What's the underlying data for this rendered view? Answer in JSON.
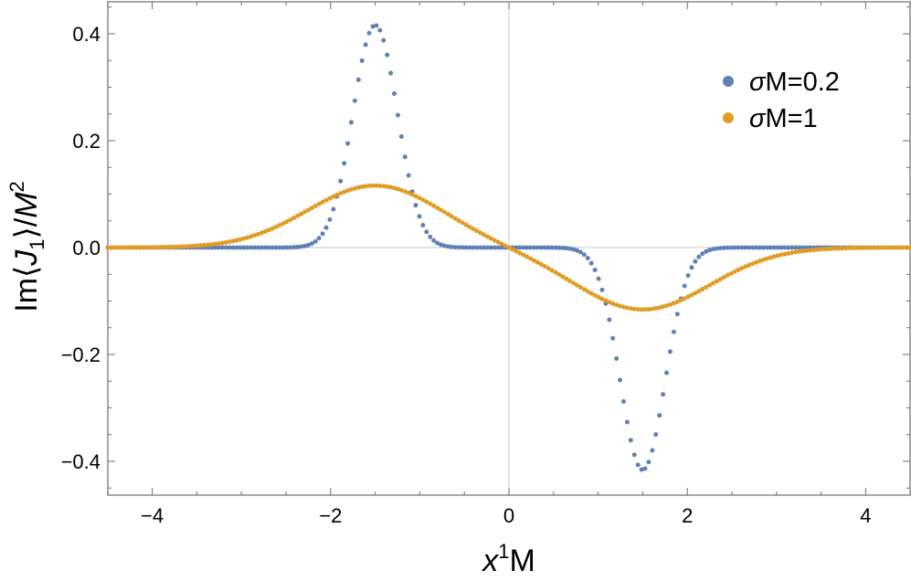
{
  "chart_data": {
    "type": "scatter",
    "title": "",
    "xlabel": {
      "base": "x",
      "sup": "1",
      "rest": "M"
    },
    "ylabel": {
      "prefix": "Im⟨",
      "var": "J",
      "sub": "1",
      "mid": "⟩/",
      "var2": "M",
      "sup": "2"
    },
    "xlim": [
      -4.5,
      4.5
    ],
    "ylim": [
      -0.46,
      0.46
    ],
    "xticks": [
      -4,
      -2,
      0,
      2,
      4
    ],
    "xtick_labels": [
      "−4",
      "−2",
      "0",
      "2",
      "4"
    ],
    "yticks": [
      -0.4,
      -0.2,
      0.0,
      0.2,
      0.4
    ],
    "ytick_labels": [
      "−0.4",
      "−0.2",
      "0.0",
      "0.2",
      "0.4"
    ],
    "grid": false,
    "zero_lines": true,
    "legend_position": "top-right",
    "x_range": [
      -4.5,
      4.5
    ],
    "point_count": 225,
    "series": [
      {
        "name": "σM=0.2",
        "legend": {
          "sym": "σ",
          "rest": "M=0.2"
        },
        "color": "#5E81B5",
        "peaks": [
          {
            "x": -1.5,
            "y": 0.416
          },
          {
            "x": 1.5,
            "y": -0.416
          }
        ],
        "peak_width": 0.25,
        "model": "sigma*x*exp(-x^2/(2w^2)) pair"
      },
      {
        "name": "σM=1",
        "legend": {
          "sym": "σ",
          "rest": "M=1"
        },
        "color": "#E19C24",
        "peaks": [
          {
            "x": -1.5,
            "y": 0.116
          },
          {
            "x": 1.5,
            "y": -0.116
          }
        ],
        "peak_width": 0.75,
        "model": "sigma*x*exp(-x^2/(2w^2)) pair"
      }
    ]
  }
}
